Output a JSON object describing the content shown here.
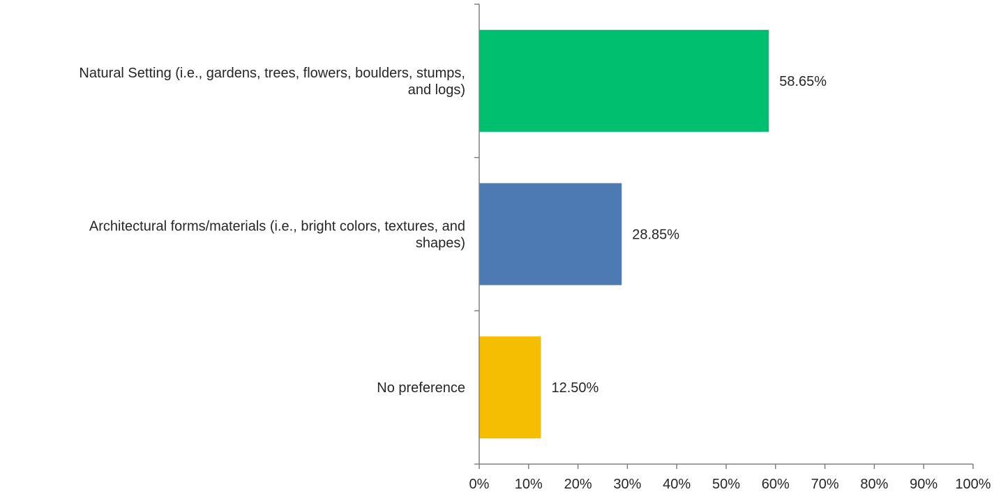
{
  "chart_data": {
    "type": "bar",
    "orientation": "horizontal",
    "categories": [
      [
        "Natural Setting (i.e., gardens, trees, flowers, boulders, stumps,",
        "and logs)"
      ],
      [
        "Architectural forms/materials (i.e., bright colors, textures, and",
        "shapes)"
      ],
      [
        "No preference"
      ]
    ],
    "values": [
      58.65,
      28.85,
      12.5
    ],
    "value_labels": [
      "58.65%",
      "28.85%",
      "12.50%"
    ],
    "bar_colors": [
      "#00c06f",
      "#4e7ab3",
      "#f6be00"
    ],
    "xlim": [
      0,
      100
    ],
    "x_ticks": [
      "0%",
      "10%",
      "20%",
      "30%",
      "40%",
      "50%",
      "60%",
      "70%",
      "80%",
      "90%",
      "100%"
    ],
    "grid": false,
    "legend": "none"
  }
}
